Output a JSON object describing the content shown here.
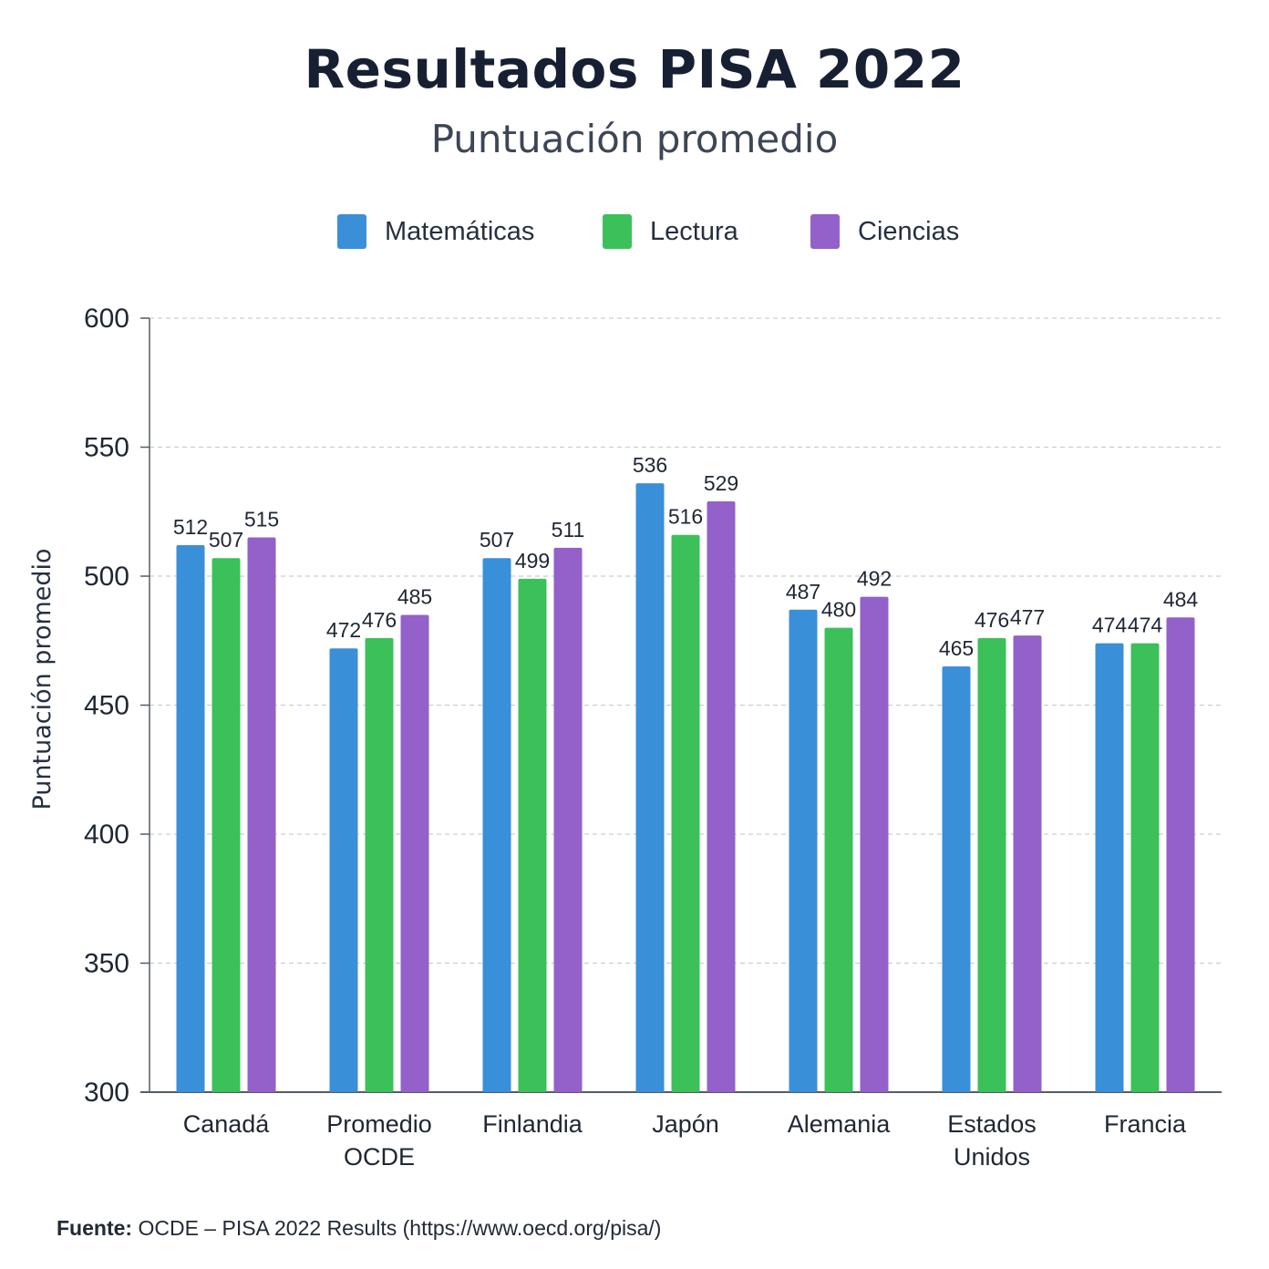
{
  "chart_data": {
    "type": "bar",
    "title": "Resultados PISA 2022",
    "subtitle": "Puntuación promedio",
    "ylabel": "Puntuación promedio",
    "xlabel": "",
    "ylim": [
      300,
      600
    ],
    "yticks": [
      300,
      350,
      400,
      450,
      500,
      550,
      600
    ],
    "grid": true,
    "legend_position": "top-center",
    "categories": [
      [
        "Canadá"
      ],
      [
        "Promedio",
        "OCDE"
      ],
      [
        "Finlandia"
      ],
      [
        "Japón"
      ],
      [
        "Alemania"
      ],
      [
        "Estados",
        "Unidos"
      ],
      [
        "Francia"
      ]
    ],
    "series": [
      {
        "name": "Matemáticas",
        "color": "#3a8fd9",
        "values": [
          512,
          472,
          507,
          536,
          487,
          465,
          474
        ]
      },
      {
        "name": "Lectura",
        "color": "#3cc05a",
        "values": [
          507,
          476,
          499,
          516,
          480,
          476,
          474
        ]
      },
      {
        "name": "Ciencias",
        "color": "#9361c9",
        "values": [
          515,
          485,
          511,
          529,
          492,
          477,
          484
        ]
      }
    ]
  },
  "footer": {
    "label": "Fuente:",
    "text": " OCDE – PISA 2022 Results (https://www.oecd.org/pisa/)"
  }
}
